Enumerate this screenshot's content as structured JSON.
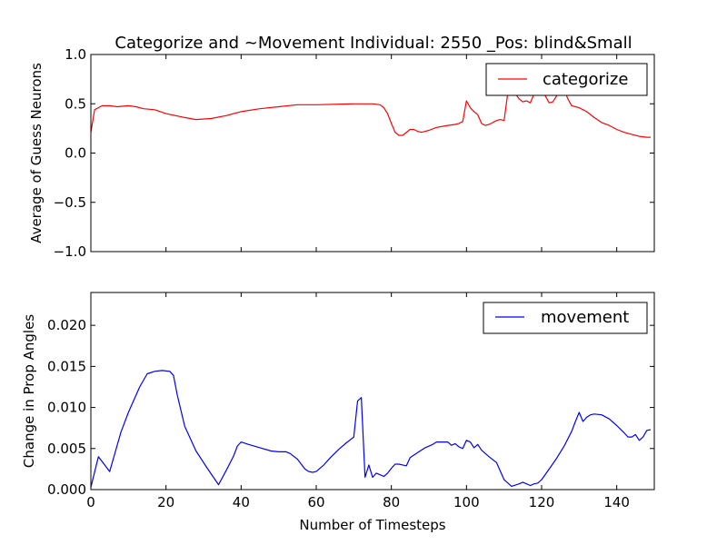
{
  "chart_data": [
    {
      "type": "line",
      "title": "Categorize and ~Movement Individual: 2550 _Pos: blind&Small",
      "xlabel": "",
      "ylabel": "Average of Guess Neurons",
      "xlim": [
        0,
        150
      ],
      "ylim": [
        -1.0,
        1.0
      ],
      "xticks": [
        0,
        20,
        40,
        60,
        80,
        100,
        120,
        140
      ],
      "xtick_labels": [
        "",
        "",
        "",
        "",
        "",
        "",
        "",
        ""
      ],
      "yticks": [
        -1.0,
        -0.5,
        0.0,
        0.5,
        1.0
      ],
      "ytick_labels": [
        "−1.0",
        "−0.5",
        "0.0",
        "0.5",
        "1.0"
      ],
      "grid": false,
      "legend_position": "top-right",
      "series": [
        {
          "name": "categorize",
          "color": "#ff0000",
          "x": [
            0,
            1,
            3,
            5,
            7,
            10,
            12,
            14,
            17,
            20,
            25,
            28,
            32,
            36,
            40,
            45,
            50,
            55,
            60,
            70,
            75,
            77,
            78,
            79,
            80,
            81,
            82,
            83,
            85,
            86,
            87,
            88,
            89,
            90,
            92,
            95,
            97,
            98,
            99,
            100,
            101,
            102,
            103,
            104,
            105,
            106,
            107,
            108,
            109,
            110,
            111,
            112,
            113,
            114,
            115,
            116,
            117,
            118,
            119,
            120,
            121,
            122,
            123,
            124,
            125,
            126,
            127,
            128,
            129,
            130,
            131,
            132,
            134,
            136,
            138,
            140,
            142,
            144,
            146,
            148,
            149
          ],
          "y": [
            0.21,
            0.44,
            0.48,
            0.48,
            0.47,
            0.48,
            0.47,
            0.45,
            0.44,
            0.4,
            0.36,
            0.34,
            0.35,
            0.38,
            0.42,
            0.45,
            0.47,
            0.49,
            0.49,
            0.5,
            0.5,
            0.49,
            0.46,
            0.4,
            0.3,
            0.21,
            0.18,
            0.18,
            0.24,
            0.24,
            0.22,
            0.21,
            0.22,
            0.23,
            0.26,
            0.28,
            0.29,
            0.3,
            0.32,
            0.53,
            0.46,
            0.42,
            0.39,
            0.3,
            0.28,
            0.29,
            0.31,
            0.33,
            0.34,
            0.33,
            0.61,
            0.65,
            0.6,
            0.55,
            0.52,
            0.53,
            0.51,
            0.6,
            0.66,
            0.62,
            0.58,
            0.51,
            0.52,
            0.58,
            0.66,
            0.64,
            0.55,
            0.48,
            0.47,
            0.46,
            0.44,
            0.42,
            0.36,
            0.31,
            0.28,
            0.24,
            0.21,
            0.19,
            0.17,
            0.16,
            0.16
          ]
        }
      ]
    },
    {
      "type": "line",
      "title": "",
      "xlabel": "Number of Timesteps",
      "ylabel": "Change in Prop Angles",
      "xlim": [
        0,
        150
      ],
      "ylim": [
        0.0,
        0.024
      ],
      "xticks": [
        0,
        20,
        40,
        60,
        80,
        100,
        120,
        140
      ],
      "xtick_labels": [
        "0",
        "20",
        "40",
        "60",
        "80",
        "100",
        "120",
        "140"
      ],
      "yticks": [
        0.0,
        0.005,
        0.01,
        0.015,
        0.02
      ],
      "ytick_labels": [
        "0.000",
        "0.005",
        "0.010",
        "0.015",
        "0.020"
      ],
      "grid": false,
      "legend_position": "top-right",
      "series": [
        {
          "name": "movement",
          "color": "#0000ff",
          "x": [
            0,
            2,
            5,
            8,
            10,
            13,
            15,
            17,
            19,
            21,
            22,
            23,
            25,
            28,
            31,
            34,
            36,
            38,
            39,
            40,
            42,
            45,
            48,
            50,
            52,
            53,
            55,
            56,
            57,
            58,
            59,
            60,
            62,
            64,
            66,
            68,
            70,
            71,
            72,
            73,
            74,
            75,
            76,
            77,
            78,
            79,
            80,
            81,
            82,
            83,
            84,
            85,
            87,
            89,
            91,
            92,
            93,
            94,
            95,
            96,
            97,
            98,
            99,
            100,
            101,
            102,
            103,
            104,
            105,
            106,
            108,
            110,
            112,
            114,
            115,
            116,
            117,
            118,
            119,
            120,
            122,
            124,
            126,
            128,
            129,
            130,
            131,
            132,
            133,
            134,
            136,
            138,
            140,
            142,
            143,
            144,
            145,
            146,
            147,
            148,
            149
          ],
          "y": [
            0.0003,
            0.004,
            0.0022,
            0.007,
            0.0094,
            0.0125,
            0.0141,
            0.0144,
            0.0145,
            0.0144,
            0.0139,
            0.0115,
            0.0077,
            0.0047,
            0.0026,
            0.0006,
            0.0023,
            0.0041,
            0.0053,
            0.0058,
            0.0055,
            0.0051,
            0.0047,
            0.0046,
            0.0046,
            0.0044,
            0.0037,
            0.0031,
            0.0025,
            0.0022,
            0.0021,
            0.0022,
            0.003,
            0.004,
            0.0049,
            0.0057,
            0.0064,
            0.0108,
            0.0112,
            0.0015,
            0.003,
            0.0015,
            0.002,
            0.0018,
            0.0016,
            0.002,
            0.0026,
            0.0031,
            0.0031,
            0.003,
            0.0029,
            0.0039,
            0.0045,
            0.0051,
            0.0055,
            0.0058,
            0.0058,
            0.0058,
            0.0058,
            0.0054,
            0.0056,
            0.0052,
            0.005,
            0.006,
            0.0058,
            0.0051,
            0.0055,
            0.0048,
            0.0044,
            0.004,
            0.0033,
            0.0012,
            0.0004,
            0.0007,
            0.0009,
            0.0007,
            0.0005,
            0.0007,
            0.0008,
            0.0012,
            0.0025,
            0.0038,
            0.0053,
            0.0071,
            0.0083,
            0.0094,
            0.0083,
            0.0088,
            0.0091,
            0.0092,
            0.0091,
            0.0086,
            0.0078,
            0.0069,
            0.0064,
            0.0064,
            0.0067,
            0.006,
            0.0064,
            0.0072,
            0.0073
          ]
        }
      ]
    }
  ]
}
